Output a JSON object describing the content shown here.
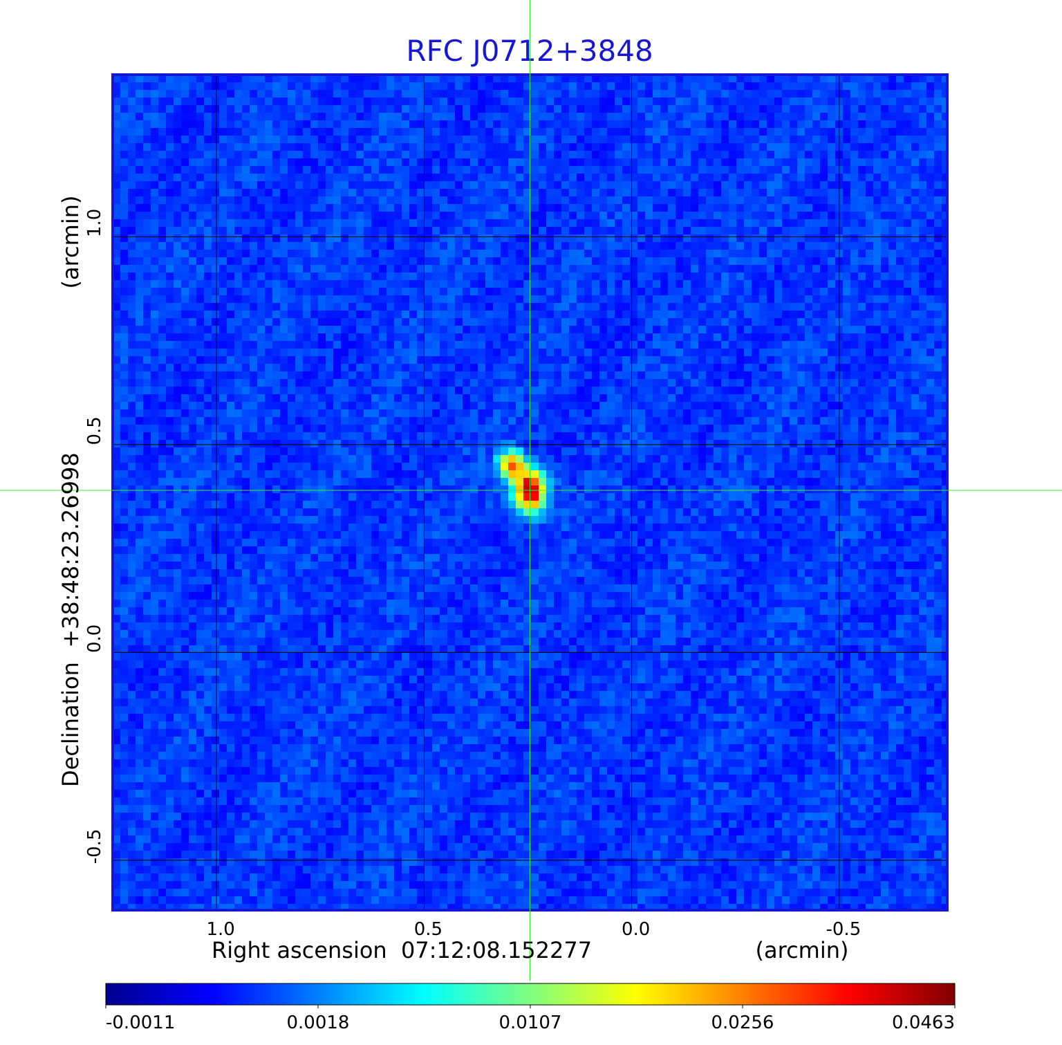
{
  "chart_data": {
    "type": "heatmap",
    "title": "RFC J0712+3848",
    "xlabel": "Right ascension  07:12:08.152277",
    "xunit": "(arcmin)",
    "ylabel": "Declination  +38:48:23.26998",
    "yunit": "(arcmin)",
    "xlim": [
      1.25,
      -0.76
    ],
    "ylim": [
      -0.62,
      1.39
    ],
    "x_ticks": [
      1.0,
      0.5,
      0.0,
      -0.5
    ],
    "y_ticks": [
      -0.5,
      0.0,
      0.5,
      1.0
    ],
    "x_tick_labels": [
      "1.0",
      "0.5",
      "0.0",
      "-0.5"
    ],
    "y_tick_labels": [
      "-0.5",
      "0.0",
      "0.5",
      "1.0"
    ],
    "crosshair": {
      "x": 0.245,
      "y": 0.39
    },
    "grid": true,
    "colormap": "jet",
    "colorbar": {
      "tick_labels": [
        "-0.0011",
        "0.0018",
        "0.0107",
        "0.0256",
        "0.0463"
      ],
      "min": -0.0011,
      "max": 0.0463
    },
    "sources": [
      {
        "x": 0.245,
        "y": 0.39,
        "peak": 0.0463
      },
      {
        "x": 0.29,
        "y": 0.45,
        "peak": 0.033
      }
    ],
    "background_level": 0.0
  },
  "colors": {
    "title": "#1616d6",
    "frame": "#1616d6",
    "crosshair": "#33ee33",
    "grid": "#000000"
  }
}
